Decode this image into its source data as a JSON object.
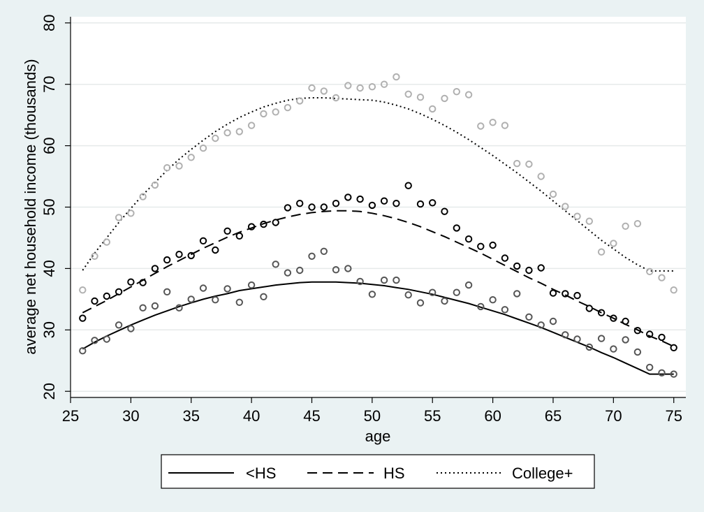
{
  "chart_data": {
    "type": "scatter",
    "xlabel": "age",
    "ylabel": "average net household income (thousands)",
    "xlim": [
      25,
      76
    ],
    "ylim": [
      19,
      81
    ],
    "xticks": [
      25,
      30,
      35,
      40,
      45,
      50,
      55,
      60,
      65,
      70,
      75
    ],
    "yticks": [
      20,
      30,
      40,
      50,
      60,
      70,
      80
    ],
    "grid": "horizontal",
    "legend_position": "bottom",
    "series": [
      {
        "name": "<HS",
        "color": "#555555",
        "line_color": "#000000",
        "line_style": "solid",
        "x": [
          26,
          27,
          28,
          29,
          30,
          31,
          32,
          33,
          34,
          35,
          36,
          37,
          38,
          39,
          40,
          41,
          42,
          43,
          44,
          45,
          46,
          47,
          48,
          49,
          50,
          51,
          52,
          53,
          54,
          55,
          56,
          57,
          58,
          59,
          60,
          61,
          62,
          63,
          64,
          65,
          66,
          67,
          68,
          69,
          70,
          71,
          72,
          73,
          74,
          75
        ],
        "points": [
          26.6,
          28.3,
          28.5,
          30.8,
          30.2,
          33.6,
          33.9,
          36.2,
          33.6,
          35.0,
          36.8,
          34.9,
          36.7,
          34.5,
          37.3,
          35.4,
          40.7,
          39.3,
          39.7,
          42.0,
          42.8,
          39.8,
          40.0,
          37.9,
          35.8,
          38.1,
          38.1,
          35.7,
          34.4,
          36.1,
          34.7,
          36.1,
          37.3,
          33.8,
          34.9,
          33.3,
          35.9,
          32.1,
          30.8,
          31.4,
          29.2,
          28.5,
          27.2,
          28.6,
          26.9,
          28.4,
          26.4,
          23.9,
          23.0,
          22.8
        ],
        "fit": [
          26.9,
          28.0,
          29.0,
          29.9,
          30.8,
          31.6,
          32.4,
          33.1,
          33.8,
          34.4,
          35.0,
          35.5,
          35.9,
          36.4,
          36.7,
          37.0,
          37.3,
          37.5,
          37.7,
          37.8,
          37.8,
          37.8,
          37.7,
          37.6,
          37.4,
          37.2,
          36.9,
          36.6,
          36.2,
          35.8,
          35.3,
          34.8,
          34.3,
          33.7,
          33.1,
          32.5,
          31.8,
          31.1,
          30.4,
          29.6,
          28.8,
          28.0,
          27.2,
          26.3,
          25.5,
          24.6,
          23.7,
          22.8,
          22.8,
          22.8
        ]
      },
      {
        "name": "HS",
        "color": "#000000",
        "line_color": "#000000",
        "line_style": "dashed",
        "x": [
          26,
          27,
          28,
          29,
          30,
          31,
          32,
          33,
          34,
          35,
          36,
          37,
          38,
          39,
          40,
          41,
          42,
          43,
          44,
          45,
          46,
          47,
          48,
          49,
          50,
          51,
          52,
          53,
          54,
          55,
          56,
          57,
          58,
          59,
          60,
          61,
          62,
          63,
          64,
          65,
          66,
          67,
          68,
          69,
          70,
          71,
          72,
          73,
          74,
          75
        ],
        "points": [
          31.9,
          34.7,
          35.5,
          36.2,
          37.8,
          37.7,
          40.0,
          41.4,
          42.3,
          42.1,
          44.5,
          43.0,
          46.1,
          45.3,
          46.8,
          47.2,
          47.5,
          49.9,
          50.6,
          50.0,
          50.0,
          50.6,
          51.6,
          51.3,
          50.3,
          51.0,
          50.6,
          53.5,
          50.5,
          50.7,
          49.3,
          46.6,
          44.8,
          43.6,
          43.8,
          41.7,
          40.4,
          39.7,
          40.1,
          36.0,
          35.9,
          35.6,
          33.5,
          32.8,
          31.9,
          31.4,
          29.9,
          29.3,
          28.8,
          27.1
        ],
        "fit": [
          32.8,
          33.8,
          34.8,
          35.9,
          37.0,
          38.1,
          39.2,
          40.3,
          41.3,
          42.3,
          43.3,
          44.2,
          45.1,
          45.9,
          46.6,
          47.3,
          47.9,
          48.4,
          48.8,
          49.1,
          49.3,
          49.4,
          49.4,
          49.3,
          49.0,
          48.6,
          48.1,
          47.5,
          46.8,
          46.0,
          45.2,
          44.3,
          43.4,
          42.5,
          41.5,
          40.5,
          39.5,
          38.5,
          37.6,
          36.6,
          35.7,
          34.7,
          33.8,
          32.8,
          31.9,
          30.9,
          30.0,
          29.0,
          28.2,
          27.3
        ]
      },
      {
        "name": "College+",
        "color": "#b0b0b0",
        "line_color": "#000000",
        "line_style": "dotted",
        "x": [
          26,
          27,
          28,
          29,
          30,
          31,
          32,
          33,
          34,
          35,
          36,
          37,
          38,
          39,
          40,
          41,
          42,
          43,
          44,
          45,
          46,
          47,
          48,
          49,
          50,
          51,
          52,
          53,
          54,
          55,
          56,
          57,
          58,
          59,
          60,
          61,
          62,
          63,
          64,
          65,
          66,
          67,
          68,
          69,
          70,
          71,
          72,
          73,
          74,
          75
        ],
        "points": [
          36.5,
          42.0,
          44.3,
          48.3,
          49.0,
          51.7,
          53.6,
          56.4,
          56.7,
          58.1,
          59.6,
          61.2,
          62.1,
          62.3,
          63.3,
          65.2,
          65.5,
          66.2,
          67.3,
          69.4,
          68.9,
          67.8,
          69.8,
          69.4,
          69.6,
          70.0,
          71.2,
          68.4,
          67.9,
          66.0,
          67.7,
          68.8,
          68.3,
          63.2,
          63.8,
          63.3,
          57.1,
          57.0,
          55.0,
          52.1,
          50.1,
          48.5,
          47.7,
          42.7,
          44.1,
          46.9,
          47.3,
          39.5,
          38.5,
          36.5
        ],
        "fit": [
          39.7,
          42.5,
          45.0,
          47.5,
          49.8,
          52.0,
          54.0,
          56.0,
          57.8,
          59.4,
          60.9,
          62.3,
          63.5,
          64.6,
          65.5,
          66.3,
          66.9,
          67.4,
          67.7,
          67.8,
          67.8,
          67.7,
          67.6,
          67.5,
          67.4,
          67.1,
          66.6,
          66.0,
          65.2,
          64.3,
          63.3,
          62.2,
          61.0,
          59.7,
          58.4,
          57.0,
          55.6,
          54.1,
          52.6,
          51.0,
          49.4,
          47.8,
          46.2,
          44.6,
          43.2,
          41.8,
          40.6,
          39.6,
          39.6,
          39.6
        ]
      }
    ]
  }
}
